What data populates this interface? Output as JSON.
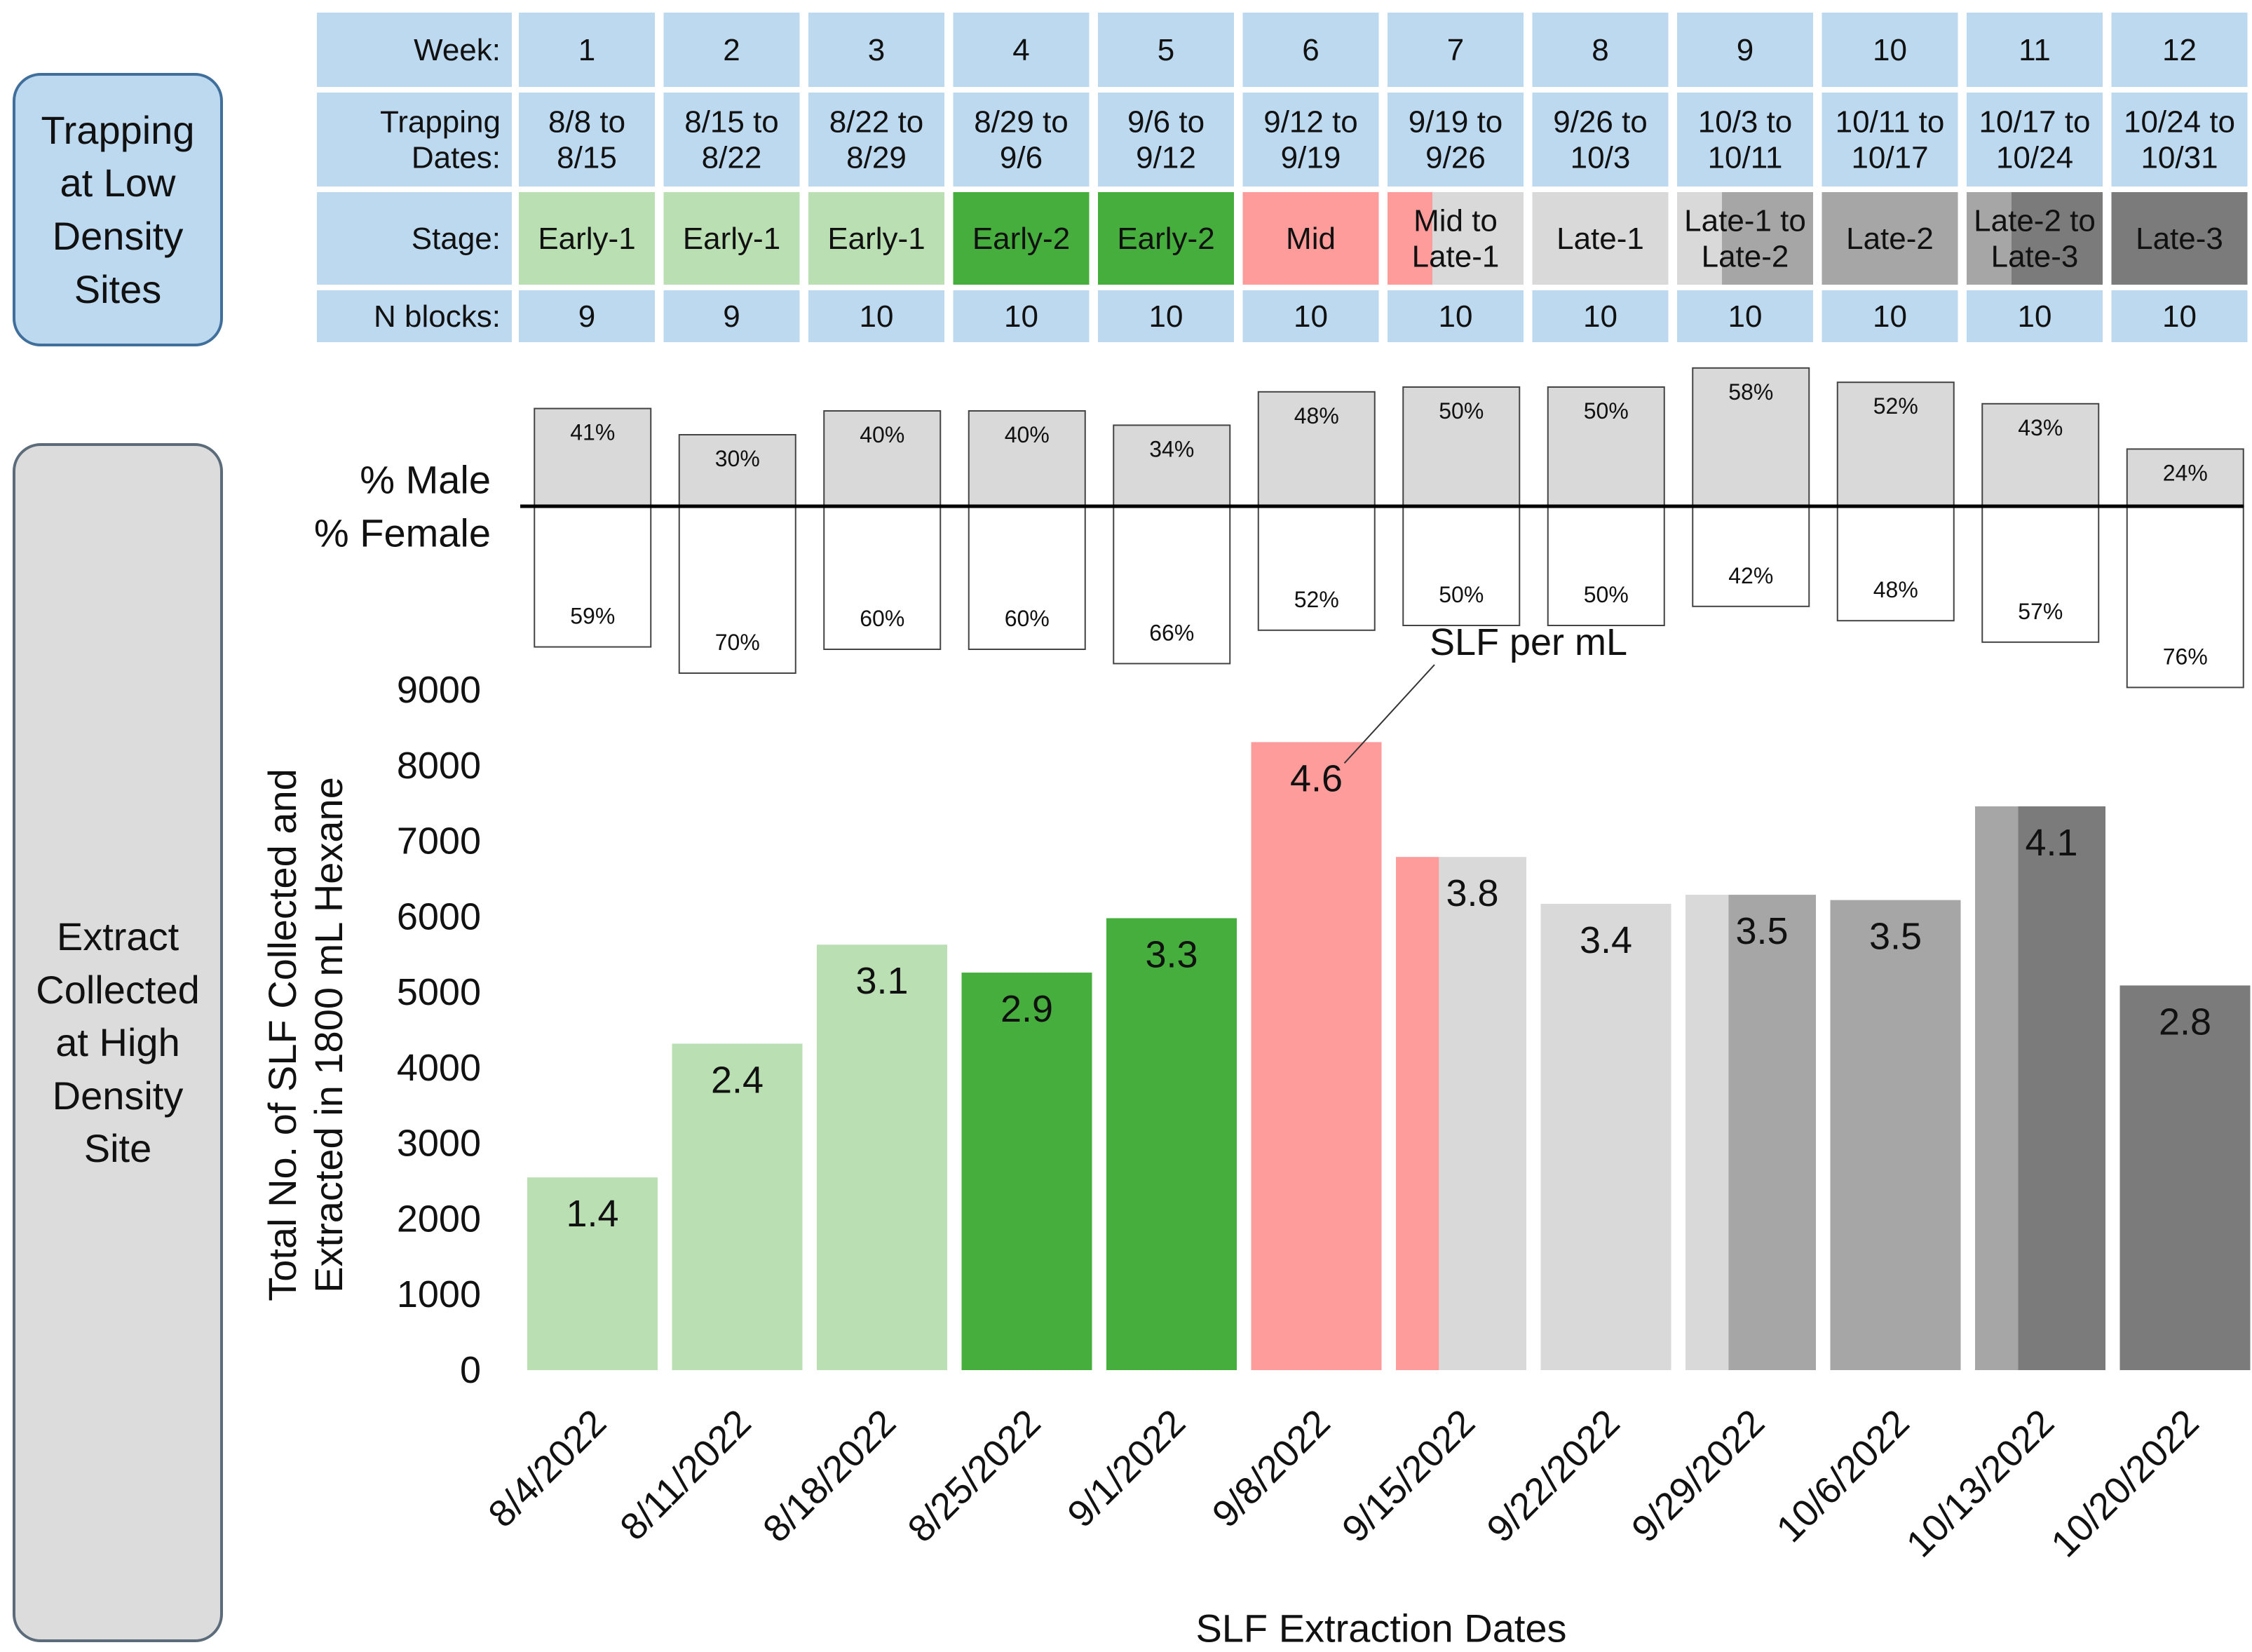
{
  "side_labels": {
    "top": "Trapping\nat Low\nDensity\nSites",
    "bottom": "Extract\nCollected\nat High\nDensity\nSite"
  },
  "table": {
    "row_labels": [
      "Week:",
      "Trapping\nDates:",
      "Stage:",
      "N blocks:"
    ],
    "weeks": [
      "1",
      "2",
      "3",
      "4",
      "5",
      "6",
      "7",
      "8",
      "9",
      "10",
      "11",
      "12"
    ],
    "dates": [
      "8/8 to\n8/15",
      "8/15 to\n8/22",
      "8/22 to\n8/29",
      "8/29 to\n9/6",
      "9/6 to\n9/12",
      "9/12 to\n9/19",
      "9/19 to\n9/26",
      "9/26 to\n10/3",
      "10/3 to\n10/11",
      "10/11 to\n10/17",
      "10/17 to\n10/24",
      "10/24 to\n10/31"
    ],
    "stages": [
      "Early-1",
      "Early-1",
      "Early-1",
      "Early-2",
      "Early-2",
      "Mid",
      "Mid to\nLate-1",
      "Late-1",
      "Late-1 to\nLate-2",
      "Late-2",
      "Late-2 to\nLate-3",
      "Late-3"
    ],
    "n_blocks": [
      "9",
      "9",
      "10",
      "10",
      "10",
      "10",
      "10",
      "10",
      "10",
      "10",
      "10",
      "10"
    ]
  },
  "colors": {
    "header_blue": "#bcd9f0",
    "early1": "#badfb3",
    "early2": "#45ae3c",
    "mid": "#fe9c9c",
    "late1": "#d9d9d9",
    "late2": "#a6a6a6",
    "late3": "#7b7b7b",
    "male_box": "#d9d9d9",
    "female_box": "#ffffff"
  },
  "sex_ratio": {
    "male_label": "% Male",
    "female_label": "% Female",
    "male": [
      "41%",
      "30%",
      "40%",
      "40%",
      "34%",
      "48%",
      "50%",
      "50%",
      "58%",
      "52%",
      "43%",
      "24%"
    ],
    "female": [
      "59%",
      "70%",
      "60%",
      "60%",
      "66%",
      "52%",
      "50%",
      "50%",
      "42%",
      "48%",
      "57%",
      "76%"
    ],
    "male_values": [
      41,
      30,
      40,
      40,
      34,
      48,
      50,
      50,
      58,
      52,
      43,
      24
    ]
  },
  "chart_data": {
    "type": "bar",
    "title": "",
    "xlabel": "SLF Extraction Dates",
    "ylabel": "Total No. of SLF Collected and\nExtracted in 1800 mL Hexane",
    "ylim": [
      0,
      9000
    ],
    "yticks": [
      "0",
      "1000",
      "2000",
      "3000",
      "4000",
      "5000",
      "6000",
      "7000",
      "8000",
      "9000"
    ],
    "categories": [
      "8/4/2022",
      "8/11/2022",
      "8/18/2022",
      "8/25/2022",
      "9/1/2022",
      "9/8/2022",
      "9/15/2022",
      "9/22/2022",
      "9/29/2022",
      "10/6/2022",
      "10/13/2022",
      "10/20/2022"
    ],
    "values": [
      2550,
      4320,
      5630,
      5260,
      5980,
      8310,
      6790,
      6170,
      6290,
      6220,
      7460,
      5090
    ],
    "data_labels": [
      "1.4",
      "2.4",
      "3.1",
      "2.9",
      "3.3",
      "4.6",
      "3.8",
      "3.4",
      "3.5",
      "3.5",
      "4.1",
      "2.8"
    ],
    "bar_stages": [
      [
        "early1"
      ],
      [
        "early1"
      ],
      [
        "early1"
      ],
      [
        "early2"
      ],
      [
        "early2"
      ],
      [
        "mid"
      ],
      [
        "mid",
        "late1"
      ],
      [
        "late1"
      ],
      [
        "late1",
        "late2"
      ],
      [
        "late2"
      ],
      [
        "late2",
        "late3"
      ],
      [
        "late3"
      ]
    ],
    "annotation": "SLF per mL"
  }
}
